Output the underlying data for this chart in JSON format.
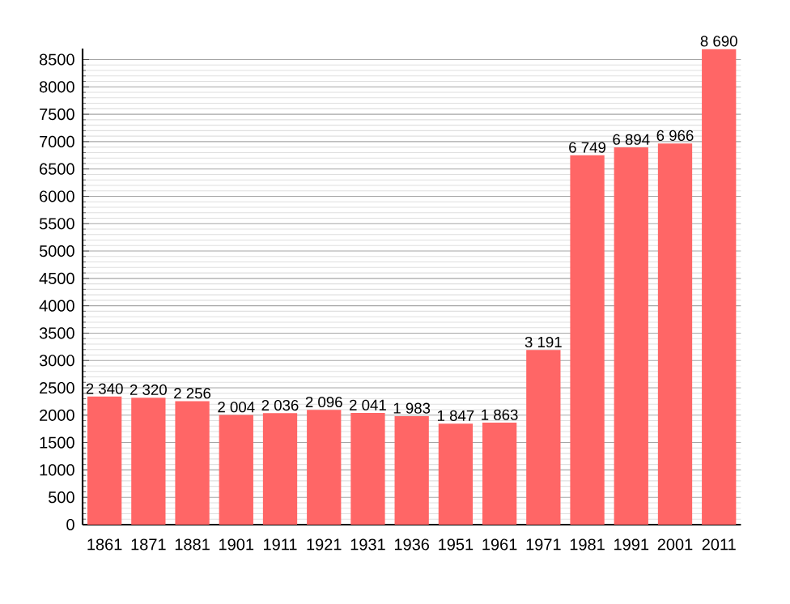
{
  "chart_data": {
    "type": "bar",
    "categories": [
      "1861",
      "1871",
      "1881",
      "1901",
      "1911",
      "1921",
      "1931",
      "1936",
      "1951",
      "1961",
      "1971",
      "1981",
      "1991",
      "2001",
      "2011"
    ],
    "values": [
      2340,
      2320,
      2256,
      2004,
      2036,
      2096,
      2041,
      1983,
      1847,
      1863,
      3191,
      6749,
      6894,
      6966,
      8690
    ],
    "value_labels": [
      "2 340",
      "2 320",
      "2 256",
      "2 004",
      "2 036",
      "2 096",
      "2 041",
      "1 983",
      "1 847",
      "1 863",
      "3 191",
      "6 749",
      "6 894",
      "6 966",
      "8 690"
    ],
    "color": "#ff6666",
    "ylim": [
      0,
      8700
    ],
    "yticks": [
      0,
      500,
      1000,
      1500,
      2000,
      2500,
      3000,
      3500,
      4000,
      4500,
      5000,
      5500,
      6000,
      6500,
      7000,
      7500,
      8000,
      8500
    ],
    "grid": "y"
  }
}
